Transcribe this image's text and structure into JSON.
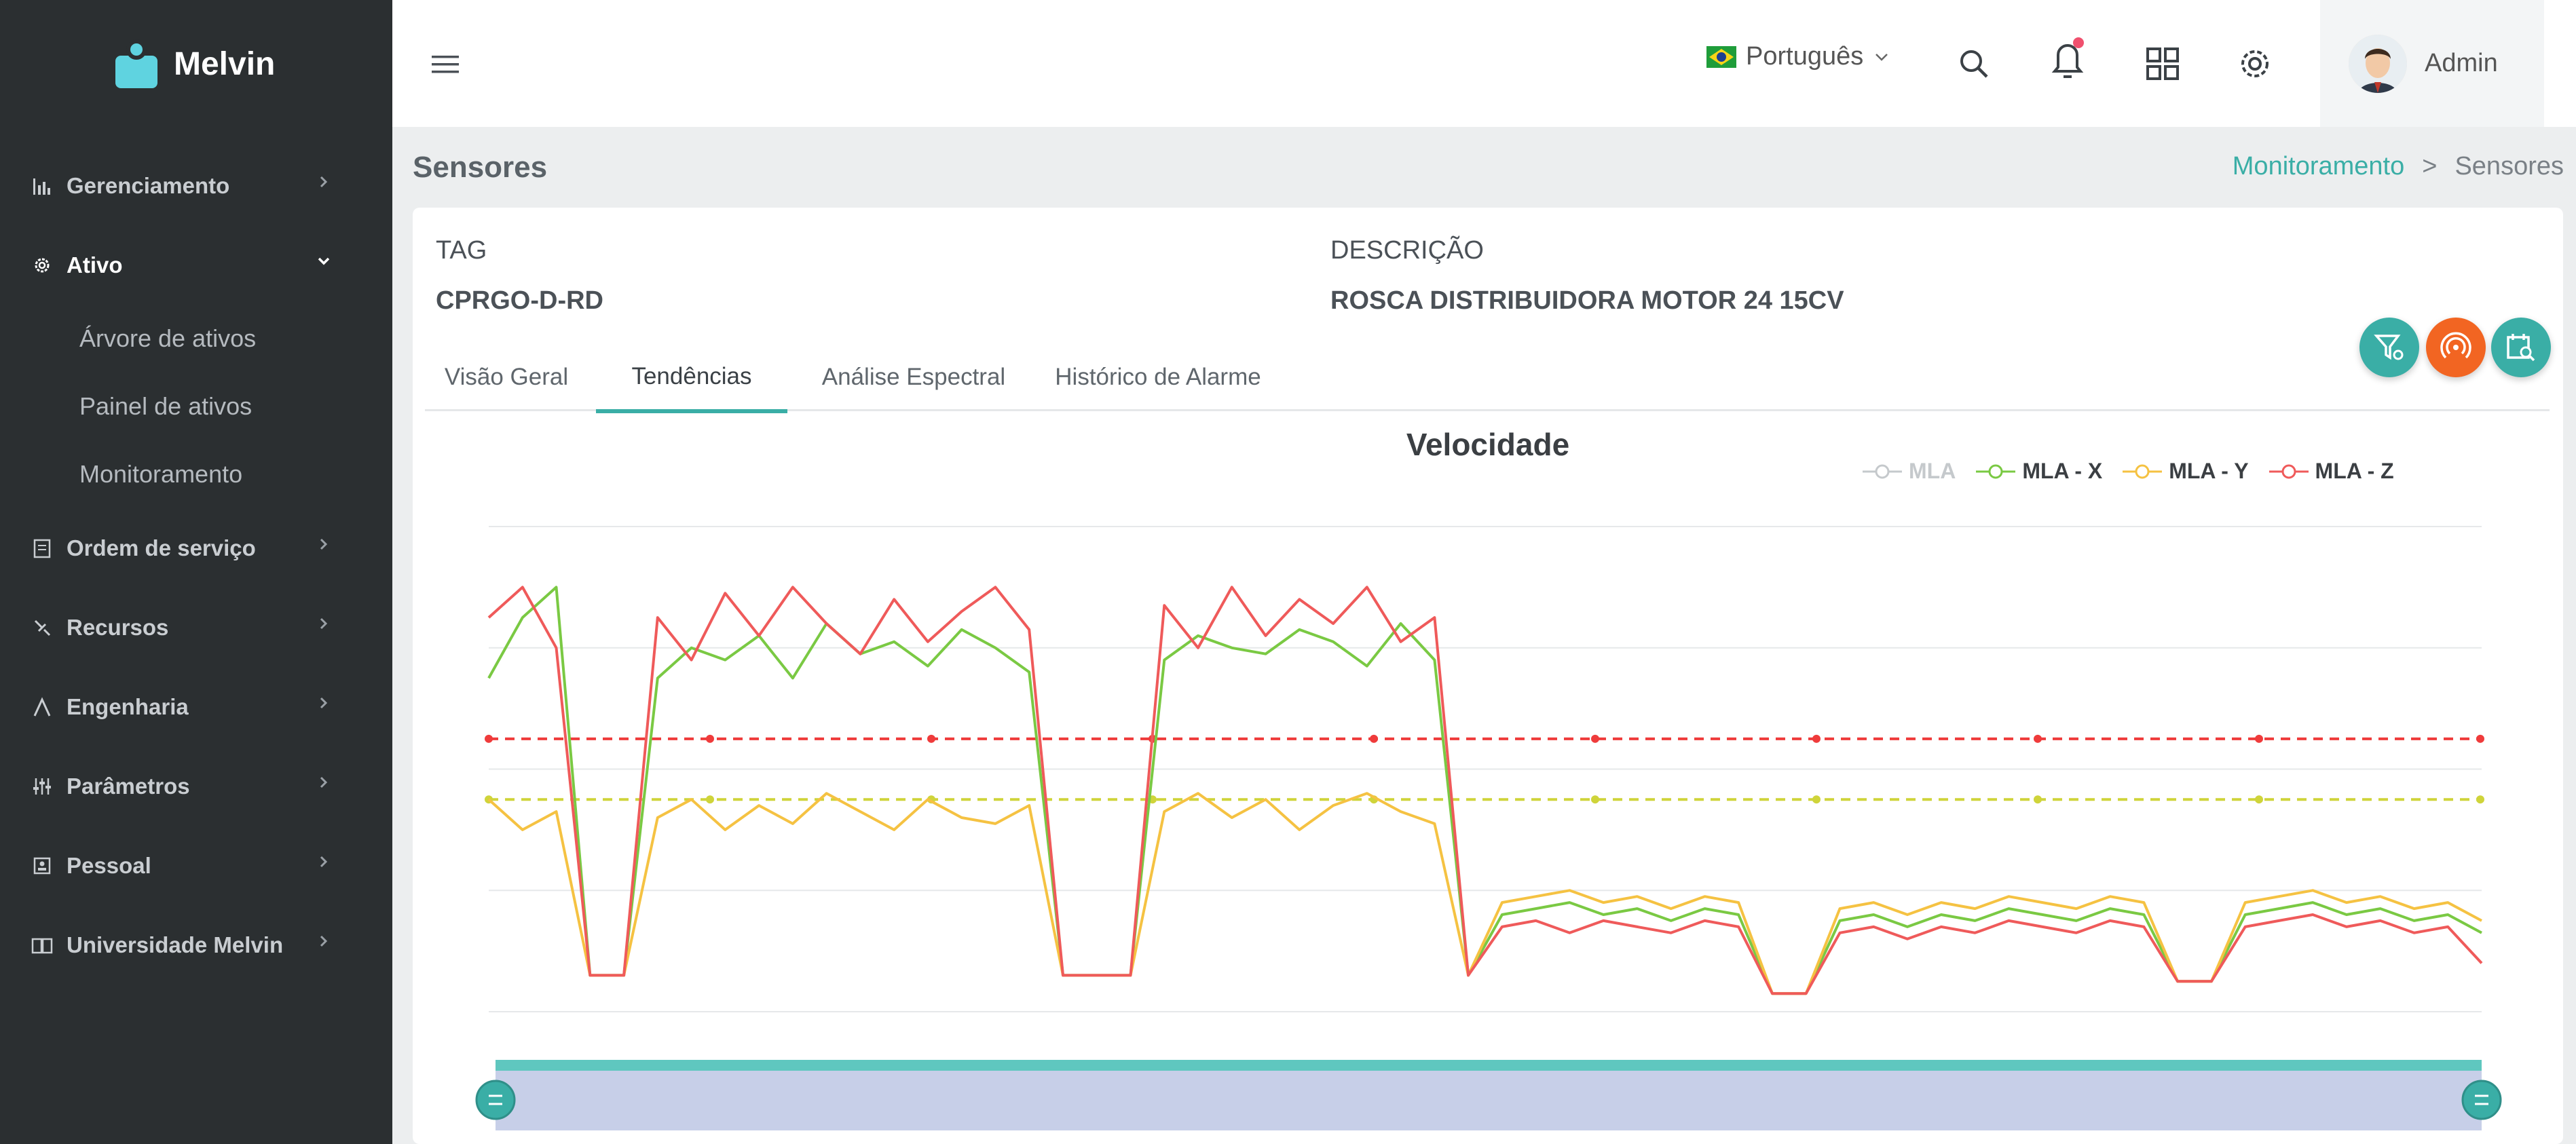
{
  "app": {
    "brand_name": "Melvin",
    "brand_color": "#5fd3e0",
    "accent": "#3aaea6"
  },
  "sidebar": {
    "items": [
      {
        "label": "Gerenciamento",
        "icon": "bar-chart-icon"
      },
      {
        "label": "Ativo",
        "icon": "gear-icon",
        "expanded": true,
        "children": [
          {
            "label": "Árvore de ativos"
          },
          {
            "label": "Painel de ativos"
          },
          {
            "label": "Monitoramento"
          }
        ]
      },
      {
        "label": "Ordem de serviço",
        "icon": "clipboard-icon"
      },
      {
        "label": "Recursos",
        "icon": "tools-icon"
      },
      {
        "label": "Engenharia",
        "icon": "compass-icon"
      },
      {
        "label": "Parâmetros",
        "icon": "sliders-icon"
      },
      {
        "label": "Pessoal",
        "icon": "id-card-icon"
      },
      {
        "label": "Universidade Melvin",
        "icon": "book-icon"
      }
    ]
  },
  "header": {
    "language": "Português",
    "language_flag": "brazil-flag-icon",
    "user_name": "Admin",
    "notification_dot_color": "#f0506e"
  },
  "page": {
    "title": "Sensores",
    "breadcrumb": {
      "link": "Monitoramento",
      "separator": ">",
      "current": "Sensores"
    }
  },
  "asset": {
    "tag_label": "TAG",
    "tag_value": "CPRGO-D-RD",
    "desc_label": "DESCRIÇÃO",
    "desc_value": "ROSCA DISTRIBUIDORA MOTOR 24 15CV"
  },
  "tabs": [
    {
      "label": "Visão Geral",
      "active": false
    },
    {
      "label": "Tendências",
      "active": true
    },
    {
      "label": "Análise Espectral",
      "active": false
    },
    {
      "label": "Histórico de Alarme",
      "active": false
    }
  ],
  "actions": [
    {
      "name": "filter-settings-button",
      "color": "#3aaea6"
    },
    {
      "name": "broadcast-button",
      "color": "#f26522"
    },
    {
      "name": "calendar-search-button",
      "color": "#3aaea6"
    }
  ],
  "chart_data": {
    "type": "line",
    "title": "Velocidade",
    "legend_position": "top-right",
    "grid": true,
    "series": [
      {
        "name": "MLA",
        "color": "#c5c9cc",
        "hidden": true,
        "values": []
      },
      {
        "name": "MLA - X",
        "color": "#7ac943",
        "values": [
          5.5,
          6.5,
          7.0,
          0.6,
          0.6,
          5.5,
          6.0,
          5.8,
          6.2,
          5.5,
          6.4,
          5.9,
          6.1,
          5.7,
          6.3,
          6.0,
          5.6,
          0.6,
          0.6,
          0.6,
          5.8,
          6.2,
          6.0,
          5.9,
          6.3,
          6.1,
          5.7,
          6.4,
          5.8,
          0.6,
          1.6,
          1.7,
          1.8,
          1.6,
          1.7,
          1.5,
          1.7,
          1.6,
          0.3,
          0.3,
          1.5,
          1.6,
          1.4,
          1.6,
          1.5,
          1.7,
          1.6,
          1.5,
          1.7,
          1.6,
          0.5,
          0.5,
          1.6,
          1.7,
          1.8,
          1.6,
          1.7,
          1.5,
          1.6,
          1.3
        ]
      },
      {
        "name": "MLA - Y",
        "color": "#f5c242",
        "values": [
          3.5,
          3.0,
          3.3,
          0.6,
          0.6,
          3.2,
          3.5,
          3.0,
          3.4,
          3.1,
          3.6,
          3.3,
          3.0,
          3.5,
          3.2,
          3.1,
          3.4,
          0.6,
          0.6,
          0.6,
          3.3,
          3.6,
          3.2,
          3.5,
          3.0,
          3.4,
          3.6,
          3.3,
          3.1,
          0.6,
          1.8,
          1.9,
          2.0,
          1.8,
          1.9,
          1.7,
          1.9,
          1.8,
          0.3,
          0.3,
          1.7,
          1.8,
          1.6,
          1.8,
          1.7,
          1.9,
          1.8,
          1.7,
          1.9,
          1.8,
          0.5,
          0.5,
          1.8,
          1.9,
          2.0,
          1.8,
          1.9,
          1.7,
          1.8,
          1.5
        ]
      },
      {
        "name": "MLA - Z",
        "color": "#ef5a5a",
        "values": [
          6.5,
          7.0,
          6.0,
          0.6,
          0.6,
          6.5,
          5.8,
          6.9,
          6.2,
          7.0,
          6.4,
          5.9,
          6.8,
          6.1,
          6.6,
          7.0,
          6.3,
          0.6,
          0.6,
          0.6,
          6.7,
          6.0,
          7.0,
          6.2,
          6.8,
          6.4,
          7.0,
          6.1,
          6.5,
          0.6,
          1.4,
          1.5,
          1.3,
          1.5,
          1.4,
          1.3,
          1.5,
          1.4,
          0.3,
          0.3,
          1.3,
          1.4,
          1.2,
          1.4,
          1.3,
          1.5,
          1.4,
          1.3,
          1.5,
          1.4,
          0.5,
          0.5,
          1.4,
          1.5,
          1.6,
          1.4,
          1.5,
          1.3,
          1.4,
          0.8
        ]
      }
    ],
    "thresholds": [
      {
        "name": "alarm",
        "value": 4.5,
        "color": "#ef3b3b"
      },
      {
        "name": "alert",
        "value": 3.5,
        "color": "#cfd43a"
      }
    ],
    "ylim": [
      0,
      8
    ]
  }
}
